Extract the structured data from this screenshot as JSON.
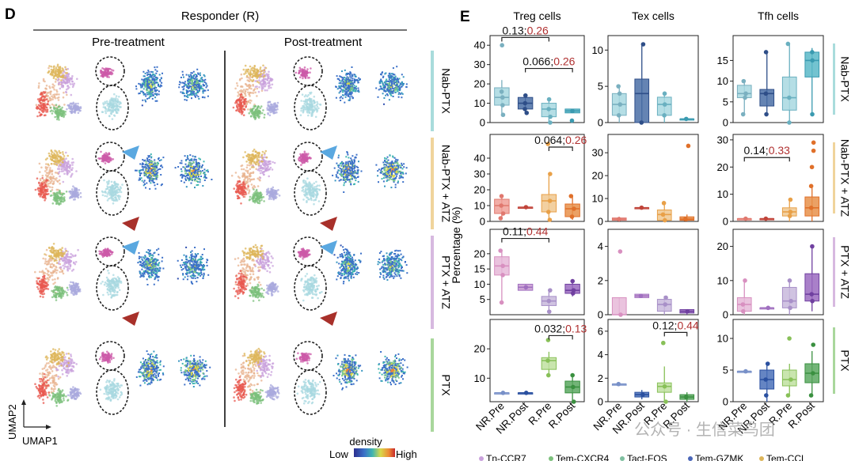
{
  "panel_d": {
    "letter": "D",
    "group_title": "Responder (R)",
    "col_pre": "Pre-treatment",
    "col_post": "Post-treatment",
    "rows": [
      "Nab-PTX",
      "Nab-PTX + ATZ",
      "PTX + ATZ",
      "PTX"
    ],
    "row_colors": [
      "#a9dcdc",
      "#f0d49c",
      "#d7b9e0",
      "#a9d79c"
    ],
    "axis_y": "UMAP2",
    "axis_x": "UMAP1",
    "density_title": "density",
    "density_low": "Low",
    "density_high": "High",
    "arrow_blue": "#5aa8e0",
    "arrow_red": "#a8302a"
  },
  "panel_e": {
    "letter": "E",
    "ylabel": "Percentage (%)",
    "col_titles": [
      "Treg cells",
      "Tex cells",
      "Tfh cells"
    ],
    "row_labels": [
      "Nab-PTX",
      "Nab-PTX + ATZ",
      "PTX + ATZ",
      "PTX"
    ],
    "xcats": [
      "NR.Pre",
      "NR.Post",
      "R.Pre",
      "R.Post"
    ],
    "annotations": [
      {
        "row": 0,
        "col": 0,
        "p1": "0.13",
        "p2": "0.26",
        "from": 0,
        "to": 2,
        "level": 44
      },
      {
        "row": 0,
        "col": 0,
        "p1": "0.066",
        "p2": "0.26",
        "from": 1,
        "to": 3,
        "level": 28
      },
      {
        "row": 1,
        "col": 0,
        "p1": "0.064",
        "p2": "0.26",
        "from": 2,
        "to": 3,
        "level": 47
      },
      {
        "row": 1,
        "col": 2,
        "p1": "0.14",
        "p2": "0.33",
        "from": 0,
        "to": 2,
        "level": 23.5
      },
      {
        "row": 2,
        "col": 0,
        "p1": "0.11",
        "p2": "0.44",
        "from": 0,
        "to": 2,
        "level": 25
      },
      {
        "row": 3,
        "col": 0,
        "p1": "0.032",
        "p2": "0.13",
        "from": 2,
        "to": 3,
        "level": 24.5
      },
      {
        "row": 3,
        "col": 1,
        "p1": "0.12",
        "p2": "0.44",
        "from": 2,
        "to": 3,
        "level": 5.9
      }
    ],
    "legend_items": [
      "Tn-CCR7",
      "Tem-CXCR4",
      "Tact-FOS",
      "Tem-GZMK",
      "Tem-CCL"
    ],
    "watermark": "公众号 · 生信菜鸟团"
  },
  "chart_data": [
    {
      "type": "box",
      "title": "Treg cells / Nab-PTX",
      "categories": [
        "NR.Pre",
        "NR.Post",
        "R.Pre",
        "R.Post"
      ],
      "ylim": [
        0,
        45
      ],
      "yticks": [
        0,
        10,
        20,
        30,
        40
      ],
      "boxes": [
        {
          "q1": 9,
          "median": 13,
          "q3": 18,
          "lo": 4,
          "hi": 22,
          "points": [
            40,
            13,
            9,
            4,
            16
          ]
        },
        {
          "q1": 7,
          "median": 10,
          "q3": 13,
          "lo": 5,
          "hi": 14,
          "points": [
            14,
            10,
            7,
            5
          ]
        },
        {
          "q1": 3,
          "median": 7,
          "q3": 10,
          "lo": 0,
          "hi": 12,
          "points": [
            12,
            7,
            0,
            3
          ]
        },
        {
          "q1": 5,
          "median": 6,
          "q3": 7,
          "lo": 5,
          "hi": 7,
          "points": [
            6,
            1
          ]
        }
      ]
    },
    {
      "type": "box",
      "title": "Tex cells / Nab-PTX",
      "categories": [
        "NR.Pre",
        "NR.Post",
        "R.Pre",
        "R.Post"
      ],
      "ylim": [
        0,
        12
      ],
      "yticks": [
        0,
        5,
        10
      ],
      "boxes": [
        {
          "q1": 1,
          "median": 2.5,
          "q3": 4,
          "lo": 0,
          "hi": 5,
          "points": [
            5,
            2.5,
            1,
            4
          ]
        },
        {
          "q1": 0,
          "median": 4,
          "q3": 6,
          "lo": 0,
          "hi": 10.8,
          "points": [
            10.8,
            0
          ]
        },
        {
          "q1": 1,
          "median": 2.5,
          "q3": 3.5,
          "lo": 0,
          "hi": 4,
          "points": [
            4,
            2.5,
            1
          ]
        },
        {
          "q1": 0.5,
          "median": 0.5,
          "q3": 0.5,
          "lo": 0.5,
          "hi": 0.5,
          "points": [
            0.5
          ]
        }
      ]
    },
    {
      "type": "box",
      "title": "Tfh cells / Nab-PTX",
      "categories": [
        "NR.Pre",
        "NR.Post",
        "R.Pre",
        "R.Post"
      ],
      "ylim": [
        0,
        21
      ],
      "yticks": [
        0,
        5,
        10,
        15
      ],
      "boxes": [
        {
          "q1": 6,
          "median": 7,
          "q3": 9,
          "lo": 2,
          "hi": 10,
          "points": [
            10,
            7,
            2,
            6
          ]
        },
        {
          "q1": 4,
          "median": 7,
          "q3": 8,
          "lo": 2,
          "hi": 17,
          "points": [
            17,
            7,
            2
          ]
        },
        {
          "q1": 3,
          "median": 6,
          "q3": 11,
          "lo": 0,
          "hi": 19,
          "points": [
            19,
            6,
            0
          ]
        },
        {
          "q1": 11,
          "median": 15,
          "q3": 17,
          "lo": 2,
          "hi": 18,
          "points": [
            15,
            2,
            17
          ]
        }
      ]
    },
    {
      "type": "box",
      "title": "Treg cells / Nab-PTX + ATZ",
      "categories": [
        "NR.Pre",
        "NR.Post",
        "R.Pre",
        "R.Post"
      ],
      "ylim": [
        0,
        55
      ],
      "yticks": [
        0,
        10,
        20,
        30,
        40
      ],
      "boxes": [
        {
          "q1": 5,
          "median": 10,
          "q3": 14,
          "lo": 2,
          "hi": 16,
          "points": [
            16,
            10,
            5,
            2
          ]
        },
        {
          "q1": 9,
          "median": 9,
          "q3": 9,
          "lo": 9,
          "hi": 9,
          "points": [
            9
          ]
        },
        {
          "q1": 6,
          "median": 13,
          "q3": 17,
          "lo": 1,
          "hi": 30,
          "points": [
            49,
            30,
            13,
            6,
            1
          ]
        },
        {
          "q1": 3,
          "median": 8,
          "q3": 11,
          "lo": 1,
          "hi": 16,
          "points": [
            16,
            8,
            3
          ]
        }
      ]
    },
    {
      "type": "box",
      "title": "Tex cells / Nab-PTX + ATZ",
      "categories": [
        "NR.Pre",
        "NR.Post",
        "R.Pre",
        "R.Post"
      ],
      "ylim": [
        0,
        38
      ],
      "yticks": [
        0,
        10,
        20,
        30
      ],
      "boxes": [
        {
          "q1": 0.5,
          "median": 1,
          "q3": 1.5,
          "lo": 0,
          "hi": 2,
          "points": [
            1
          ]
        },
        {
          "q1": 6,
          "median": 6,
          "q3": 6,
          "lo": 6,
          "hi": 6,
          "points": [
            6
          ]
        },
        {
          "q1": 0.5,
          "median": 3,
          "q3": 5,
          "lo": 0,
          "hi": 8,
          "points": [
            8,
            3,
            0.5
          ]
        },
        {
          "q1": 0.5,
          "median": 1,
          "q3": 2,
          "lo": 0,
          "hi": 3,
          "points": [
            33,
            1
          ]
        }
      ]
    },
    {
      "type": "box",
      "title": "Tfh cells / Nab-PTX + ATZ",
      "categories": [
        "NR.Pre",
        "NR.Post",
        "R.Pre",
        "R.Post"
      ],
      "ylim": [
        0,
        32
      ],
      "yticks": [
        0,
        10,
        20,
        30
      ],
      "boxes": [
        {
          "q1": 0.5,
          "median": 1,
          "q3": 1,
          "lo": 0.5,
          "hi": 1,
          "points": [
            1
          ]
        },
        {
          "q1": 1,
          "median": 1,
          "q3": 1,
          "lo": 1,
          "hi": 1,
          "points": [
            1
          ]
        },
        {
          "q1": 2,
          "median": 3.5,
          "q3": 5,
          "lo": 0,
          "hi": 8,
          "points": [
            8,
            3.5,
            2
          ]
        },
        {
          "q1": 2,
          "median": 5,
          "q3": 9,
          "lo": 0,
          "hi": 13,
          "points": [
            29,
            26,
            20,
            13,
            5
          ]
        }
      ]
    },
    {
      "type": "box",
      "title": "Treg cells / PTX + ATZ",
      "categories": [
        "NR.Pre",
        "NR.Post",
        "R.Pre",
        "R.Post"
      ],
      "ylim": [
        0,
        28
      ],
      "yticks": [
        5,
        10,
        15,
        20
      ],
      "boxes": [
        {
          "q1": 13,
          "median": 16,
          "q3": 19,
          "lo": 4,
          "hi": 21,
          "points": [
            21,
            16,
            13,
            4
          ]
        },
        {
          "q1": 8,
          "median": 9,
          "q3": 10,
          "lo": 8,
          "hi": 10,
          "points": [
            9
          ]
        },
        {
          "q1": 3,
          "median": 4.5,
          "q3": 6,
          "lo": 1,
          "hi": 8,
          "points": [
            8,
            4.5,
            1
          ]
        },
        {
          "q1": 7,
          "median": 8,
          "q3": 10,
          "lo": 6,
          "hi": 11,
          "points": [
            11,
            8,
            7
          ]
        }
      ]
    },
    {
      "type": "box",
      "title": "Tex cells / PTX + ATZ",
      "categories": [
        "NR.Pre",
        "NR.Post",
        "R.Pre",
        "R.Post"
      ],
      "ylim": [
        0,
        5
      ],
      "yticks": [
        0,
        2,
        4
      ],
      "boxes": [
        {
          "q1": 0,
          "median": 0,
          "q3": 1,
          "lo": 0,
          "hi": 1,
          "points": [
            3.7,
            0
          ]
        },
        {
          "q1": 1,
          "median": 1.1,
          "q3": 1.2,
          "lo": 1,
          "hi": 1.2,
          "points": [
            1.1
          ]
        },
        {
          "q1": 0.2,
          "median": 0.6,
          "q3": 0.9,
          "lo": 0,
          "hi": 1.1,
          "points": [
            1,
            0.6
          ]
        },
        {
          "q1": 0.1,
          "median": 0.2,
          "q3": 0.3,
          "lo": 0,
          "hi": 0.3,
          "points": [
            0.2
          ]
        }
      ]
    },
    {
      "type": "box",
      "title": "Tfh cells / PTX + ATZ",
      "categories": [
        "NR.Pre",
        "NR.Post",
        "R.Pre",
        "R.Post"
      ],
      "ylim": [
        0,
        25
      ],
      "yticks": [
        0,
        10,
        20
      ],
      "boxes": [
        {
          "q1": 1,
          "median": 3,
          "q3": 5,
          "lo": 0,
          "hi": 10,
          "points": [
            10,
            3,
            1
          ]
        },
        {
          "q1": 2,
          "median": 2,
          "q3": 2,
          "lo": 2,
          "hi": 2,
          "points": [
            2
          ]
        },
        {
          "q1": 2,
          "median": 4,
          "q3": 8,
          "lo": 0,
          "hi": 10,
          "points": [
            10,
            4,
            2
          ]
        },
        {
          "q1": 4,
          "median": 6,
          "q3": 12,
          "lo": 1,
          "hi": 20,
          "points": [
            20,
            6,
            4
          ]
        }
      ]
    },
    {
      "type": "box",
      "title": "Treg cells / PTX",
      "categories": [
        "NR.Pre",
        "NR.Post",
        "R.Pre",
        "R.Post"
      ],
      "ylim": [
        2,
        30
      ],
      "yticks": [
        10,
        20
      ],
      "boxes": [
        {
          "q1": 5,
          "median": 5,
          "q3": 5,
          "lo": 5,
          "hi": 5,
          "points": [
            5
          ]
        },
        {
          "q1": 5,
          "median": 5,
          "q3": 5,
          "lo": 5,
          "hi": 5,
          "points": [
            5
          ]
        },
        {
          "q1": 13,
          "median": 16,
          "q3": 17,
          "lo": 11,
          "hi": 19,
          "points": [
            23,
            16,
            11
          ]
        },
        {
          "q1": 5,
          "median": 7,
          "q3": 9,
          "lo": 2,
          "hi": 11,
          "points": [
            11,
            7,
            2
          ]
        }
      ]
    },
    {
      "type": "box",
      "title": "Tex cells / PTX",
      "categories": [
        "NR.Pre",
        "NR.Post",
        "R.Pre",
        "R.Post"
      ],
      "ylim": [
        0,
        7
      ],
      "yticks": [
        0,
        2,
        4,
        6
      ],
      "boxes": [
        {
          "q1": 1.5,
          "median": 1.5,
          "q3": 1.5,
          "lo": 1.5,
          "hi": 1.5,
          "points": [
            1.5
          ]
        },
        {
          "q1": 0.4,
          "median": 0.6,
          "q3": 0.8,
          "lo": 0.2,
          "hi": 1,
          "points": [
            0.6
          ]
        },
        {
          "q1": 0.8,
          "median": 1.3,
          "q3": 1.6,
          "lo": 0,
          "hi": 3,
          "points": [
            5,
            1.3,
            0
          ]
        },
        {
          "q1": 0.2,
          "median": 0.4,
          "q3": 0.6,
          "lo": 0,
          "hi": 0.8,
          "points": [
            0.4
          ]
        }
      ]
    },
    {
      "type": "box",
      "title": "Tfh cells / PTX",
      "categories": [
        "NR.Pre",
        "NR.Post",
        "R.Pre",
        "R.Post"
      ],
      "ylim": [
        0,
        13
      ],
      "yticks": [
        0,
        5,
        10
      ],
      "boxes": [
        {
          "q1": 4.8,
          "median": 4.8,
          "q3": 4.8,
          "lo": 4.8,
          "hi": 4.8,
          "points": [
            4.8
          ]
        },
        {
          "q1": 2,
          "median": 3.5,
          "q3": 5,
          "lo": 0,
          "hi": 6,
          "points": [
            6,
            3.5,
            1
          ]
        },
        {
          "q1": 2.5,
          "median": 3.5,
          "q3": 5,
          "lo": 1,
          "hi": 6,
          "points": [
            10,
            3.5,
            1
          ]
        },
        {
          "q1": 3,
          "median": 4.5,
          "q3": 6,
          "lo": 1,
          "hi": 8,
          "points": [
            9,
            4.5,
            1
          ]
        }
      ]
    }
  ]
}
